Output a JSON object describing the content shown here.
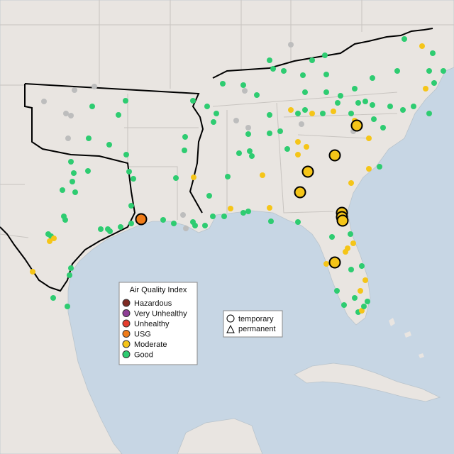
{
  "legend": {
    "title": "Air Quality Index",
    "items": [
      {
        "label": "Hazardous",
        "color": "#7e2a22"
      },
      {
        "label": "Very Unhealthy",
        "color": "#8f3f97"
      },
      {
        "label": "Unhealthy",
        "color": "#e53d2f"
      },
      {
        "label": "USG",
        "color": "#f07c19"
      },
      {
        "label": "Moderate",
        "color": "#f5c518"
      },
      {
        "label": "Good",
        "color": "#2ecc71"
      }
    ]
  },
  "shape_legend": {
    "items": [
      "temporary",
      "permanent"
    ]
  }
}
